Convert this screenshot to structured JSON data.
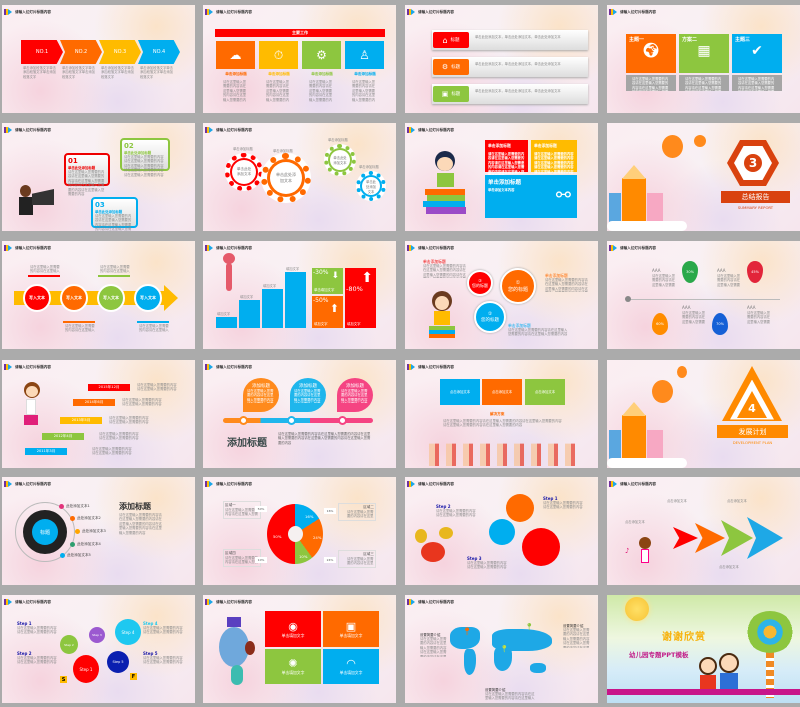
{
  "header_title": "请输入幻灯片标题内容",
  "colors": {
    "red": "#ff0000",
    "orange": "#ff6a00",
    "yellow": "#ffbb00",
    "green": "#8dc63f",
    "blue": "#00aeef",
    "background": "#ababab"
  },
  "ph": {
    "add_text": "单击此处添加文本",
    "para": "单击添加段落文字单击添加段落文字单击添加段落文字",
    "add_title": "单击添加标题",
    "long": "请在这里输入您需要的内容请在这里输入您需要的内容请在这里输入您需要的内容请在这里输入您需要的内容请在这里输入您需要的内容"
  },
  "s1": {
    "steps": [
      "NO.1",
      "NO.2",
      "NO.3",
      "NO.4"
    ]
  },
  "s2": {
    "banner": "主要工作",
    "cards": [
      "单击添加标题",
      "单击添加标题",
      "单击添加标题",
      "单击添加标题"
    ]
  },
  "s3": {
    "labels": [
      "标题",
      "标题",
      "标题"
    ],
    "bullet": "单击此处添加文本，单击此处添加文本，单击此处添加文本"
  },
  "s4": {
    "tiles": [
      "主题一",
      "方案二",
      "主题三"
    ]
  },
  "s5": {
    "nums": [
      "01",
      "02",
      "03"
    ],
    "title": "单击此处添加标题"
  },
  "s6": {
    "center": "单击此处添加文本",
    "labels": [
      "单击添加标题",
      "单击添加标题",
      "单击添加标题",
      "单击添加标题"
    ]
  },
  "s7": {
    "t1": "单击添加标题",
    "t2": "单击添加标题",
    "t3": "单击添加标题",
    "body": "单击添加文本内容"
  },
  "s8": {
    "num": "3",
    "title": "总结报告",
    "sub": "SUMMARY REPORT"
  },
  "s9": {
    "circles": [
      "写入文本",
      "写入文本",
      "写入文本",
      "写入文本"
    ]
  },
  "s10": {
    "bar_label": "填加文字",
    "p1": "-30%",
    "p2": "-50%",
    "p3": "-80%",
    "l1": "单击填加文字",
    "l2": "填加文字",
    "l3": "填加文字"
  },
  "s11": {
    "nums": [
      "③",
      "①",
      "②"
    ],
    "title": "您的标题",
    "label": "单击添加标题"
  },
  "s12": {
    "pcts": [
      "30%",
      "45%",
      "60%",
      "70%"
    ],
    "aaa": "AAA"
  },
  "s13": {
    "dates": [
      "2015年12月",
      "2014年6月",
      "2013年5月",
      "2012年4月",
      "2011年3月"
    ]
  },
  "s14": {
    "drop": "添加标题",
    "big": "添加标题"
  },
  "s15": {
    "box": "点击添加文本",
    "title": "解决方案"
  },
  "s16": {
    "num": "4",
    "title": "发展计划",
    "sub": "DEVELOPMENT PLAN"
  },
  "s17": {
    "center": "标题",
    "items": [
      "此处添加文本1",
      "此处添加文本2",
      "此处添加文本3",
      "此处添加文本4",
      "此处添加文本5"
    ],
    "title": "添加标题"
  },
  "s18": {
    "segments": [
      {
        "label": "16%",
        "value": 16,
        "color": "#00aeef"
      },
      {
        "label": "24%",
        "value": 24,
        "color": "#ff6a00"
      },
      {
        "label": "10%",
        "value": 10,
        "color": "#8dc63f"
      },
      {
        "label": "50%",
        "value": 50,
        "color": "#ff0000"
      }
    ],
    "areas": [
      "区域一",
      "区域二",
      "区域三",
      "区域四"
    ]
  },
  "s19": {
    "steps": [
      "Step 1",
      "Step 2",
      "Step 3"
    ]
  },
  "s20": {
    "text": "点击添加文本"
  },
  "s21": {
    "steps": [
      "Step 1",
      "Step 2",
      "Step 3",
      "Step 4",
      "Step 5"
    ],
    "s": "S",
    "f": "F"
  },
  "s22": {
    "tile": "单击填加文字"
  },
  "s23": {
    "label": "设置简要介绍"
  },
  "s24": {
    "title": "谢谢欣赏",
    "sub": "幼儿园专题PPT模板"
  }
}
